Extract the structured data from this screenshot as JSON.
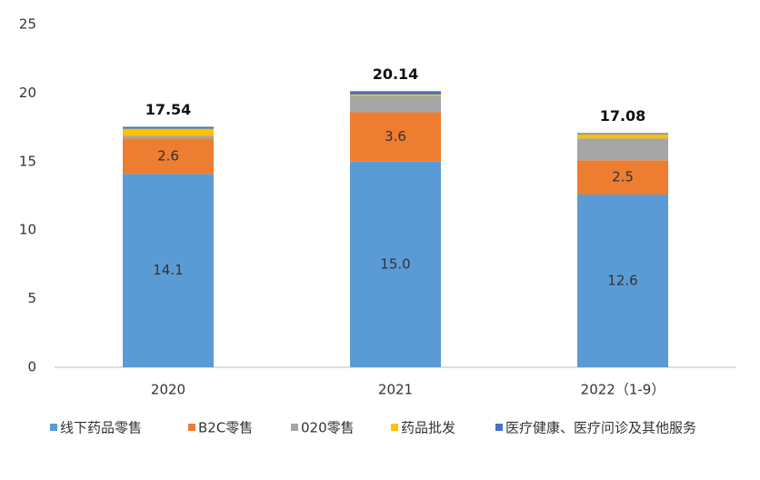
{
  "chart_data": {
    "type": "stacked_bar",
    "categories": [
      "2020",
      "2021",
      "2022（1-9）"
    ],
    "series": [
      {
        "name": "线下药品零售",
        "color": "#5b9bd5",
        "values": [
          14.1,
          15.0,
          12.6
        ],
        "value_labels": [
          "14.1",
          "15.0",
          "12.6"
        ],
        "data_labels": true
      },
      {
        "name": "B2C零售",
        "color": "#ed7d31",
        "values": [
          2.6,
          3.6,
          2.5
        ],
        "data_labels": true
      },
      {
        "name": "020零售",
        "color": "#a5a5a5",
        "values": [
          0.2,
          1.2,
          1.6
        ],
        "data_labels": false
      },
      {
        "name": "药品批发",
        "color": "#ffc000",
        "values": [
          0.5,
          0.1,
          0.3
        ],
        "data_labels": false
      },
      {
        "name": "医疗健康、医疗问诊及其他服务",
        "color": "#4472c4",
        "values": [
          0.14,
          0.24,
          0.08
        ],
        "data_labels": false
      }
    ],
    "totals": [
      17.54,
      20.14,
      17.08
    ],
    "ylim": [
      0,
      25
    ],
    "yticks": [
      0,
      5,
      10,
      15,
      20,
      25
    ],
    "grid": false,
    "legend": "bottom"
  }
}
